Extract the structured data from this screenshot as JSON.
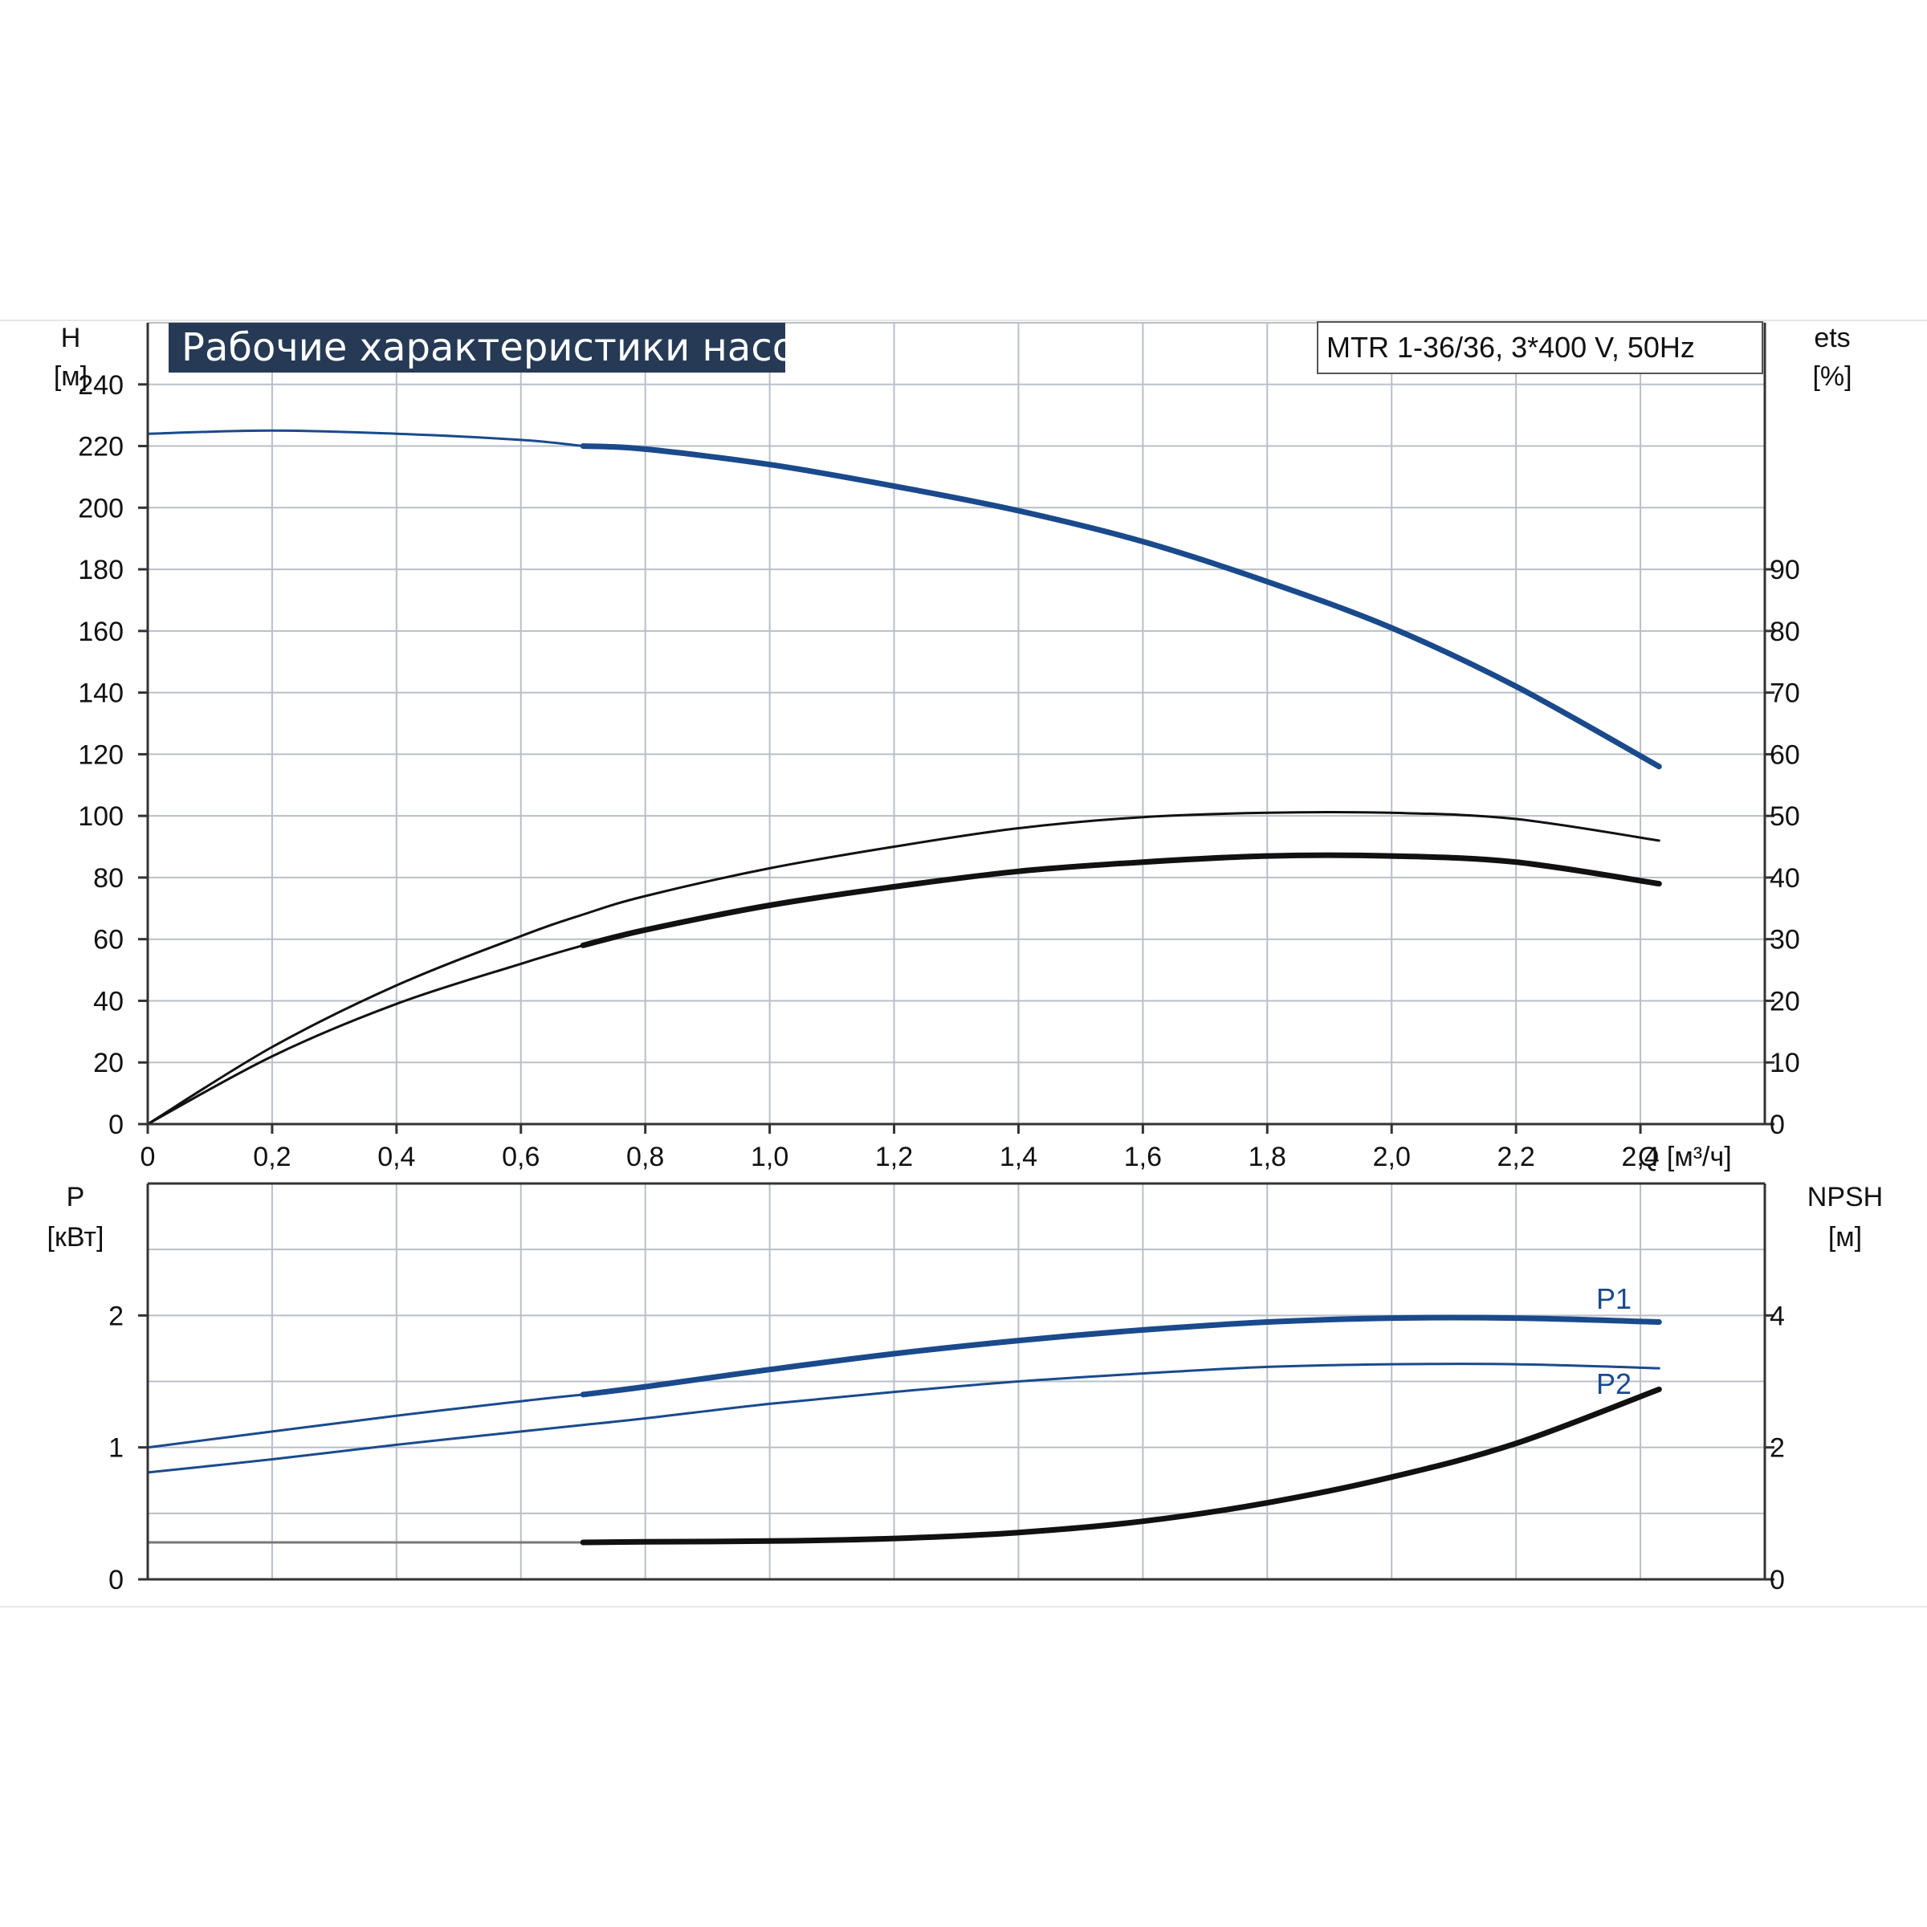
{
  "title": "Рабочие характеристики насоса",
  "model": "MTR 1-36/36, 3*400 V, 50Hz",
  "colors": {
    "blue": "#1a4a8c",
    "black": "#111111",
    "grid": "#b8bfc8",
    "title_bg": "#263a55"
  },
  "chart_data": [
    {
      "type": "line",
      "panel": "upper",
      "xlabel": "Q [м³/ч]",
      "ylabel": [
        "H",
        "[м]"
      ],
      "y2label": [
        "ets",
        "[%]"
      ],
      "xlim": [
        0,
        2.6
      ],
      "ylim": [
        0,
        260
      ],
      "y2lim": [
        0,
        130
      ],
      "x_ticks": [
        0,
        0.2,
        0.4,
        0.6,
        0.8,
        1.0,
        1.2,
        1.4,
        1.6,
        1.8,
        2.0,
        2.2,
        2.4
      ],
      "x_tick_labels": [
        "0",
        "0,2",
        "0,4",
        "0,6",
        "0,8",
        "1,0",
        "1,2",
        "1,4",
        "1,6",
        "1,8",
        "2,0",
        "2,2",
        "2,4"
      ],
      "y_ticks": [
        0,
        20,
        40,
        60,
        80,
        100,
        120,
        140,
        160,
        180,
        200,
        220,
        240
      ],
      "y_tick_labels": [
        "0",
        "20",
        "40",
        "60",
        "80",
        "100",
        "120",
        "140",
        "160",
        "180",
        "200",
        "220",
        "240"
      ],
      "y2_ticks": [
        0,
        10,
        20,
        30,
        40,
        50,
        60,
        70,
        80,
        90
      ],
      "y2_tick_labels": [
        "0",
        "10",
        "20",
        "30",
        "40",
        "50",
        "60",
        "70",
        "80",
        "90"
      ],
      "grid": true,
      "series": [
        {
          "axis": "left",
          "color": "#1a4a8c",
          "weight": "thick",
          "thin_until": 0.7,
          "x": [
            0,
            0.2,
            0.4,
            0.6,
            0.7,
            0.8,
            1.0,
            1.2,
            1.4,
            1.6,
            1.8,
            2.0,
            2.2,
            2.43
          ],
          "y": [
            224,
            225,
            224,
            222,
            220,
            219,
            214,
            207,
            199,
            189,
            176,
            161,
            142,
            116
          ]
        },
        {
          "axis": "right",
          "color": "#111111",
          "weight": "thin",
          "thin_until": 2.43,
          "x": [
            0,
            0.2,
            0.4,
            0.6,
            0.7,
            0.8,
            1.0,
            1.2,
            1.4,
            1.6,
            1.8,
            2.0,
            2.2,
            2.43
          ],
          "y": [
            0,
            12.5,
            22.5,
            30.5,
            34,
            37,
            41.5,
            45,
            48,
            49.8,
            50.5,
            50.5,
            49.5,
            46
          ]
        },
        {
          "axis": "right",
          "color": "#111111",
          "weight": "thick",
          "thin_until": 0.7,
          "x": [
            0,
            0.2,
            0.4,
            0.6,
            0.7,
            0.8,
            1.0,
            1.2,
            1.4,
            1.6,
            1.8,
            2.0,
            2.2,
            2.43
          ],
          "y": [
            0,
            11,
            19.5,
            26,
            29,
            31.5,
            35.5,
            38.5,
            41,
            42.5,
            43.5,
            43.5,
            42.5,
            39
          ]
        }
      ]
    },
    {
      "type": "line",
      "panel": "lower",
      "ylabel": [
        "P",
        "[кВт]"
      ],
      "y2label": [
        "NPSH",
        "[м]"
      ],
      "xlim": [
        0,
        2.6
      ],
      "ylim": [
        0,
        3
      ],
      "y2lim": [
        0,
        6
      ],
      "y_ticks": [
        0,
        1,
        2
      ],
      "y_tick_labels": [
        "0",
        "1",
        "2"
      ],
      "y2_ticks": [
        0,
        2,
        4
      ],
      "y2_tick_labels": [
        "0",
        "2",
        "4"
      ],
      "grid": true,
      "series": [
        {
          "name": "P1",
          "axis": "left",
          "color": "#1a4a8c",
          "weight": "thick",
          "thin_until": 0.7,
          "x": [
            0,
            0.2,
            0.4,
            0.6,
            0.7,
            0.8,
            1.0,
            1.2,
            1.4,
            1.6,
            1.8,
            2.0,
            2.2,
            2.43
          ],
          "y": [
            1.0,
            1.12,
            1.24,
            1.35,
            1.4,
            1.46,
            1.59,
            1.71,
            1.81,
            1.89,
            1.95,
            1.98,
            1.98,
            1.95
          ]
        },
        {
          "name": "P2",
          "axis": "left",
          "color": "#1a4a8c",
          "weight": "thin",
          "thin_until": 2.43,
          "x": [
            0,
            0.2,
            0.4,
            0.6,
            0.7,
            0.8,
            1.0,
            1.2,
            1.4,
            1.6,
            1.8,
            2.0,
            2.2,
            2.43
          ],
          "y": [
            0.81,
            0.91,
            1.02,
            1.12,
            1.17,
            1.22,
            1.33,
            1.42,
            1.5,
            1.56,
            1.61,
            1.63,
            1.63,
            1.6
          ]
        },
        {
          "axis": "right",
          "color": "#111111",
          "weight": "thick",
          "thin_until": 0.7,
          "thin_color": "#777777",
          "x": [
            0,
            0.2,
            0.4,
            0.6,
            0.7,
            0.8,
            1.0,
            1.2,
            1.4,
            1.6,
            1.8,
            2.0,
            2.2,
            2.43
          ],
          "y": [
            0.56,
            0.56,
            0.56,
            0.56,
            0.56,
            0.57,
            0.58,
            0.62,
            0.71,
            0.88,
            1.16,
            1.55,
            2.06,
            2.88
          ]
        }
      ]
    }
  ]
}
